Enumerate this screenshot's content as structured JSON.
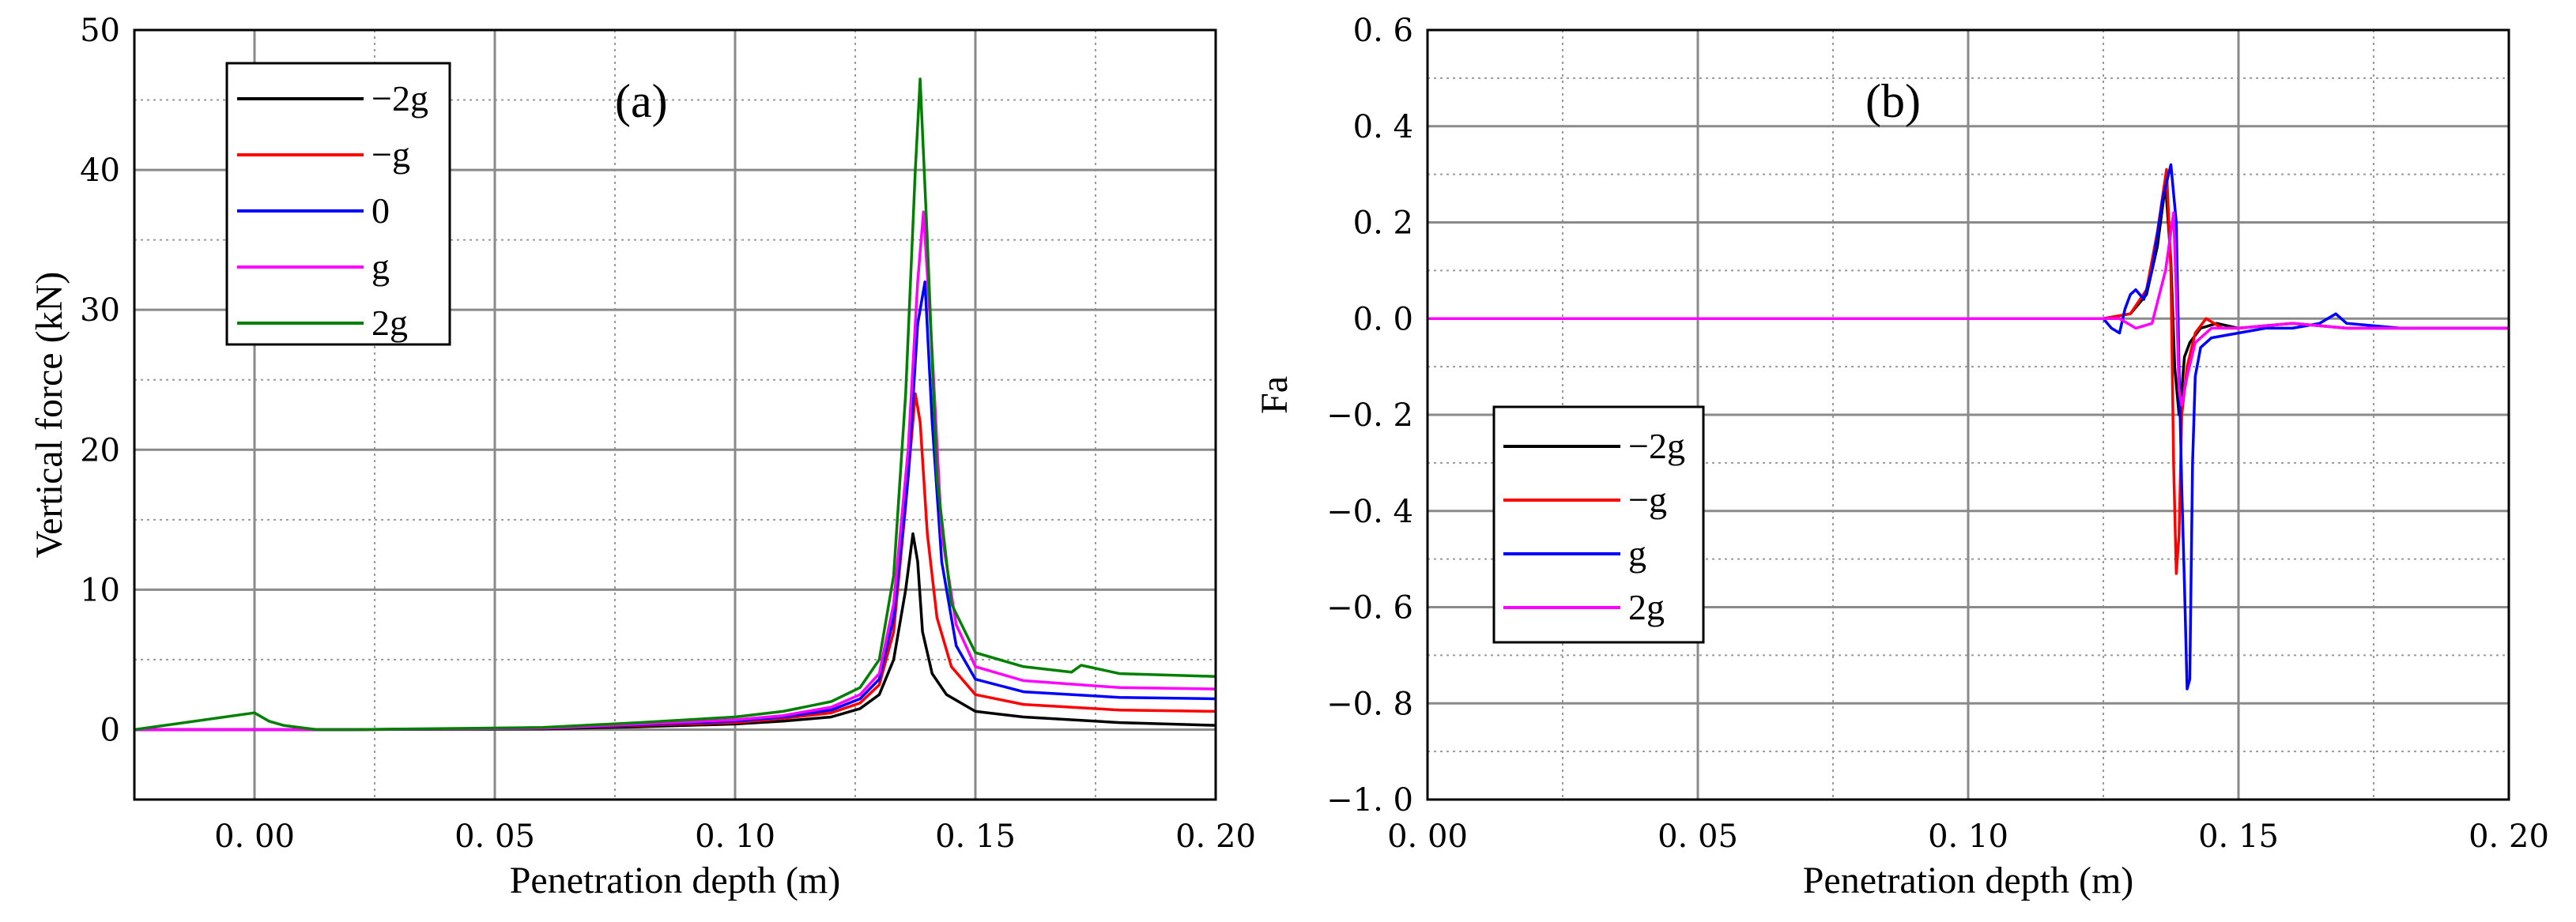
{
  "chart_data": [
    {
      "id": "a",
      "type": "line",
      "panel_label": "(a)",
      "xlabel": "Penetration depth (m)",
      "ylabel": "Vertical force (kN)",
      "xlim": [
        -0.025,
        0.2
      ],
      "ylim": [
        -5,
        50
      ],
      "xticks": [
        0.0,
        0.05,
        0.1,
        0.15,
        0.2
      ],
      "xtick_labels": [
        "0. 00",
        "0. 05",
        "0. 10",
        "0. 15",
        "0. 20"
      ],
      "yticks": [
        0,
        10,
        20,
        30,
        40,
        50
      ],
      "ytick_labels": [
        "0",
        "10",
        "20",
        "30",
        "40",
        "50"
      ],
      "grid": true,
      "legend_position": "top-left",
      "series": [
        {
          "name": "−2g",
          "color": "#000000",
          "x": [
            -0.025,
            0.0,
            0.003,
            0.006,
            0.013,
            0.02,
            0.06,
            0.08,
            0.1,
            0.11,
            0.12,
            0.126,
            0.13,
            0.133,
            0.1355,
            0.137,
            0.138,
            0.139,
            0.141,
            0.144,
            0.15,
            0.16,
            0.18,
            0.2
          ],
          "y": [
            0,
            0,
            0,
            0,
            0,
            0,
            0.05,
            0.2,
            0.4,
            0.6,
            0.9,
            1.5,
            2.5,
            5.0,
            10.0,
            14.0,
            12.0,
            7.0,
            4.0,
            2.5,
            1.3,
            0.9,
            0.5,
            0.3
          ]
        },
        {
          "name": "−g",
          "color": "#ff0000",
          "x": [
            -0.025,
            0.0,
            0.003,
            0.006,
            0.013,
            0.02,
            0.06,
            0.08,
            0.1,
            0.11,
            0.12,
            0.126,
            0.13,
            0.133,
            0.1355,
            0.1375,
            0.1385,
            0.14,
            0.142,
            0.145,
            0.15,
            0.16,
            0.18,
            0.2
          ],
          "y": [
            0,
            0,
            0,
            0,
            0,
            0,
            0.1,
            0.3,
            0.5,
            0.8,
            1.2,
            1.9,
            3.2,
            7.0,
            16.0,
            24.0,
            22.0,
            14.0,
            8.0,
            4.5,
            2.5,
            1.8,
            1.4,
            1.3
          ]
        },
        {
          "name": "0",
          "color": "#0000ff",
          "x": [
            -0.025,
            0.0,
            0.003,
            0.006,
            0.013,
            0.02,
            0.06,
            0.08,
            0.1,
            0.11,
            0.12,
            0.126,
            0.13,
            0.133,
            0.136,
            0.138,
            0.1395,
            0.141,
            0.143,
            0.146,
            0.15,
            0.16,
            0.18,
            0.2
          ],
          "y": [
            0,
            0,
            0,
            0,
            0,
            0,
            0.1,
            0.35,
            0.6,
            0.9,
            1.4,
            2.2,
            3.6,
            8.0,
            18.0,
            29.0,
            32.0,
            22.0,
            12.0,
            6.0,
            3.6,
            2.7,
            2.3,
            2.2
          ]
        },
        {
          "name": "g",
          "color": "#ff00ff",
          "x": [
            -0.025,
            0.0,
            0.003,
            0.006,
            0.013,
            0.02,
            0.06,
            0.08,
            0.1,
            0.11,
            0.12,
            0.126,
            0.13,
            0.133,
            0.136,
            0.138,
            0.1392,
            0.141,
            0.143,
            0.146,
            0.15,
            0.16,
            0.18,
            0.2
          ],
          "y": [
            0,
            0,
            0,
            0,
            0,
            0,
            0.1,
            0.4,
            0.7,
            1.0,
            1.6,
            2.5,
            4.0,
            9.0,
            20.0,
            32.0,
            37.0,
            27.0,
            14.0,
            7.5,
            4.5,
            3.5,
            3.0,
            2.9
          ]
        },
        {
          "name": "2g",
          "color": "#008000",
          "x": [
            -0.025,
            0.0,
            0.003,
            0.006,
            0.013,
            0.02,
            0.06,
            0.08,
            0.1,
            0.11,
            0.12,
            0.126,
            0.13,
            0.133,
            0.1355,
            0.1375,
            0.1385,
            0.14,
            0.142,
            0.145,
            0.15,
            0.16,
            0.17,
            0.172,
            0.18,
            0.2
          ],
          "y": [
            0,
            1.2,
            0.6,
            0.3,
            0,
            0,
            0.15,
            0.5,
            0.9,
            1.3,
            2.0,
            3.0,
            5.0,
            11.0,
            24.0,
            40.0,
            46.5,
            35.0,
            18.0,
            9.0,
            5.5,
            4.5,
            4.1,
            4.6,
            4.0,
            3.8
          ]
        }
      ]
    },
    {
      "id": "b",
      "type": "line",
      "panel_label": "(b)",
      "xlabel": "Penetration depth (m)",
      "ylabel": "Fa",
      "xlim": [
        0.0,
        0.2
      ],
      "ylim": [
        -1.0,
        0.6
      ],
      "xticks": [
        0.0,
        0.05,
        0.1,
        0.15,
        0.2
      ],
      "xtick_labels": [
        "0. 00",
        "0. 05",
        "0. 10",
        "0. 15",
        "0. 20"
      ],
      "yticks": [
        -1.0,
        -0.8,
        -0.6,
        -0.4,
        -0.2,
        0.0,
        0.2,
        0.4,
        0.6
      ],
      "ytick_labels": [
        "−1. 0",
        "−0. 8",
        "−0. 6",
        "−0. 4",
        "−0. 2",
        "0. 0",
        "0. 2",
        "0. 4",
        "0. 6"
      ],
      "grid": true,
      "legend_position": "center-left",
      "series": [
        {
          "name": "−2g",
          "color": "#000000",
          "x": [
            0.0,
            0.115,
            0.125,
            0.13,
            0.133,
            0.135,
            0.1365,
            0.1375,
            0.1382,
            0.139,
            0.1395,
            0.14,
            0.141,
            0.143,
            0.146,
            0.15,
            0.16,
            0.17,
            0.18,
            0.2
          ],
          "y": [
            0,
            0,
            0,
            0.01,
            0.05,
            0.15,
            0.28,
            0.12,
            -0.1,
            -0.2,
            -0.15,
            -0.08,
            -0.05,
            -0.02,
            -0.01,
            -0.02,
            -0.01,
            -0.02,
            -0.02,
            -0.02
          ]
        },
        {
          "name": "−g",
          "color": "#ff0000",
          "x": [
            0.0,
            0.115,
            0.125,
            0.13,
            0.133,
            0.135,
            0.1367,
            0.1375,
            0.138,
            0.1385,
            0.139,
            0.1395,
            0.1405,
            0.142,
            0.144,
            0.147,
            0.15,
            0.16,
            0.17,
            0.18,
            0.2
          ],
          "y": [
            0,
            0,
            0,
            0.01,
            0.06,
            0.18,
            0.31,
            0.1,
            -0.3,
            -0.53,
            -0.45,
            -0.2,
            -0.1,
            -0.03,
            0.0,
            -0.02,
            -0.02,
            -0.01,
            -0.02,
            -0.02,
            -0.02
          ]
        },
        {
          "name": "g",
          "color": "#0000ff",
          "x": [
            0.0,
            0.11,
            0.12,
            0.125,
            0.1265,
            0.128,
            0.129,
            0.13,
            0.131,
            0.1325,
            0.134,
            0.136,
            0.1375,
            0.1385,
            0.139,
            0.1395,
            0.14,
            0.1405,
            0.141,
            0.1415,
            0.142,
            0.143,
            0.145,
            0.15,
            0.155,
            0.16,
            0.165,
            0.168,
            0.17,
            0.18,
            0.2
          ],
          "y": [
            0,
            0,
            0,
            0,
            -0.02,
            -0.03,
            0.02,
            0.05,
            0.06,
            0.04,
            0.1,
            0.25,
            0.32,
            0.2,
            -0.1,
            -0.35,
            -0.55,
            -0.77,
            -0.75,
            -0.3,
            -0.12,
            -0.06,
            -0.04,
            -0.03,
            -0.02,
            -0.02,
            -0.01,
            0.01,
            -0.01,
            -0.02,
            -0.02
          ]
        },
        {
          "name": "2g",
          "color": "#ff00ff",
          "x": [
            0.0,
            0.12,
            0.125,
            0.128,
            0.131,
            0.134,
            0.1365,
            0.138,
            0.1385,
            0.139,
            0.1395,
            0.1405,
            0.142,
            0.145,
            0.15,
            0.16,
            0.17,
            0.18,
            0.2
          ],
          "y": [
            0,
            0,
            0,
            0.0,
            -0.02,
            -0.01,
            0.1,
            0.22,
            0.05,
            -0.15,
            -0.18,
            -0.12,
            -0.05,
            -0.02,
            -0.02,
            -0.01,
            -0.02,
            -0.02,
            -0.02
          ]
        }
      ]
    }
  ]
}
